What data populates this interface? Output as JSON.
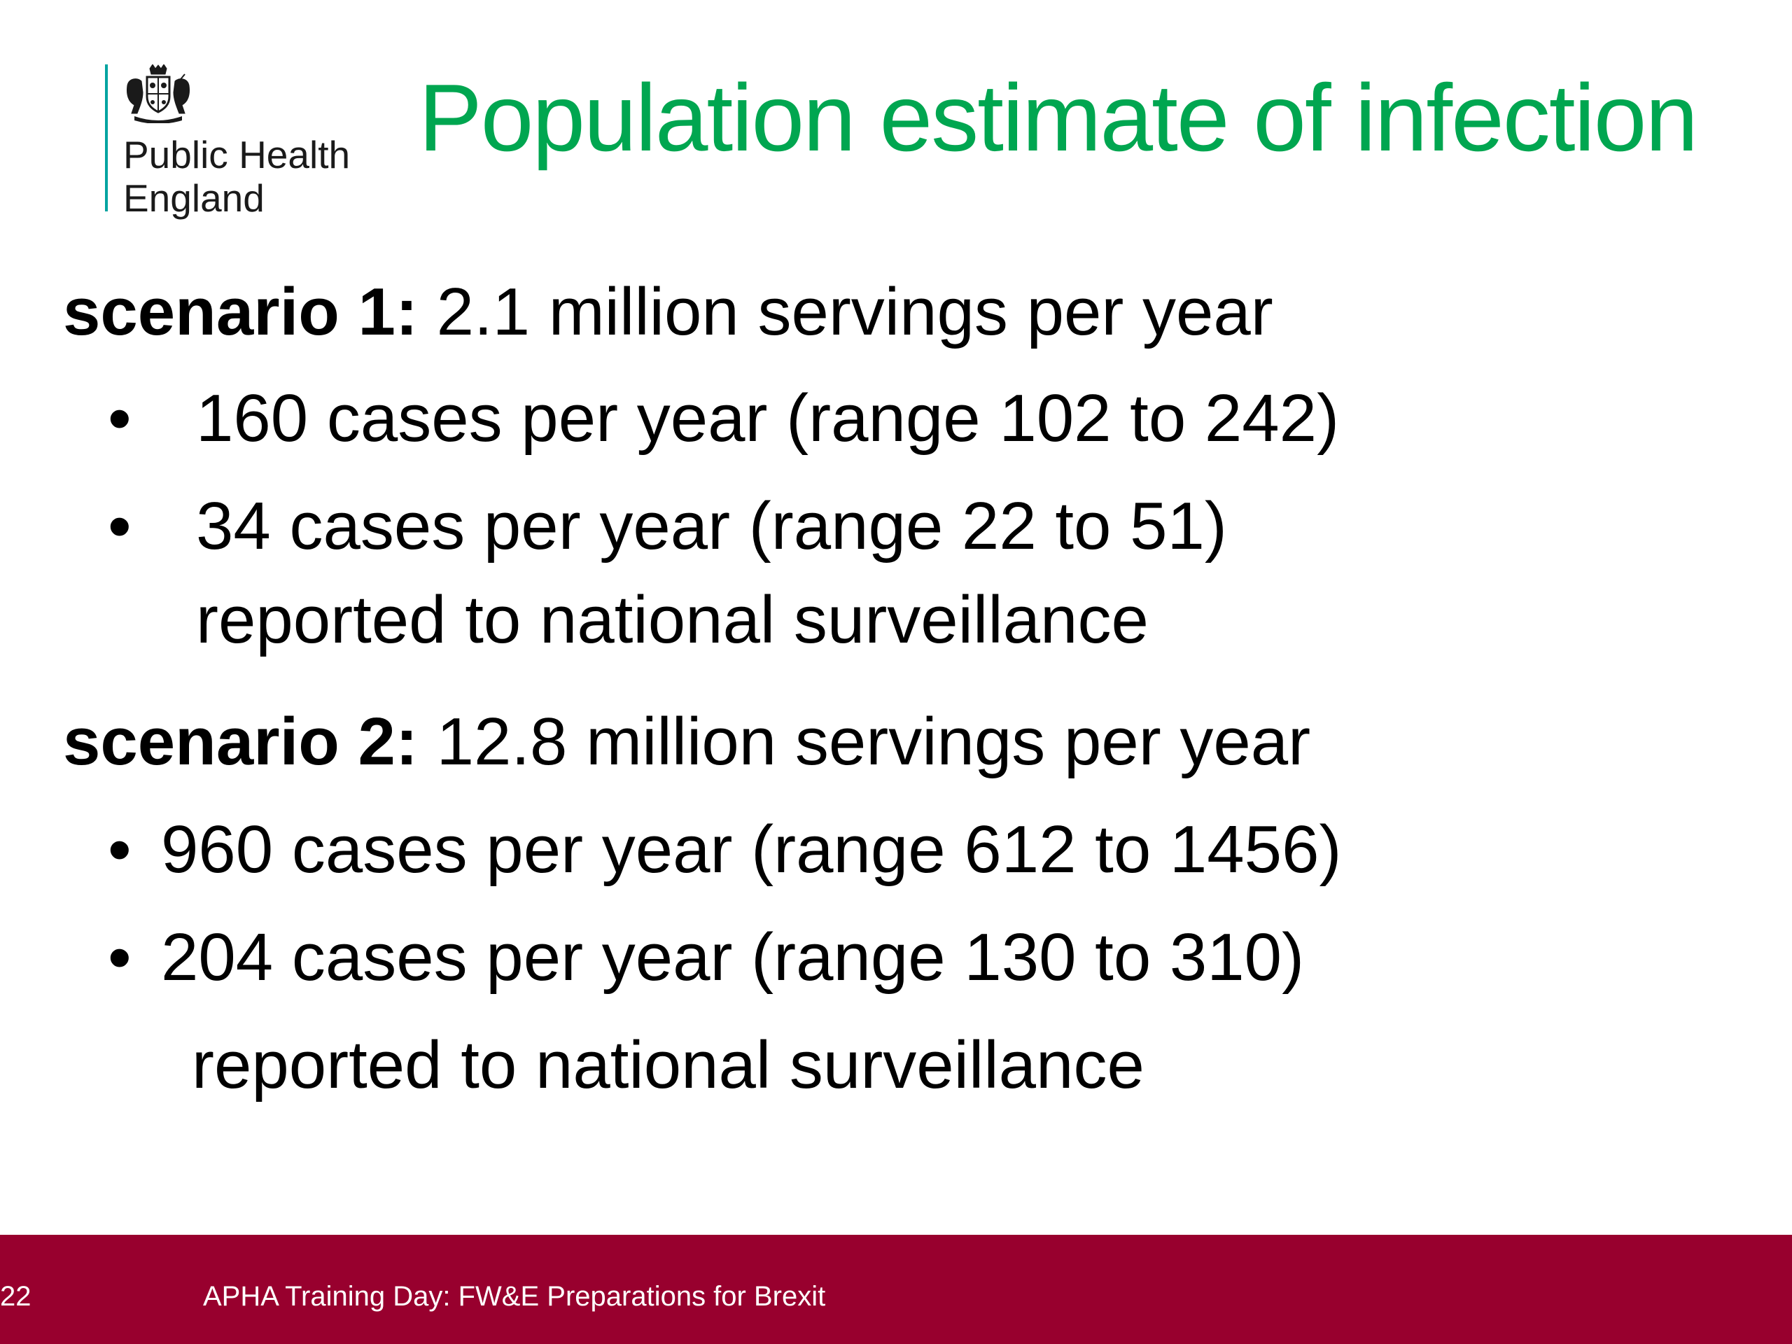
{
  "logo": {
    "org_line1": "Public Health",
    "org_line2": "England",
    "icon": "royal-crest-icon",
    "accent_color": "#00a3a0"
  },
  "title": "Population estimate of infection",
  "title_color": "#00a650",
  "scenarios": [
    {
      "label": "scenario 1:",
      "text": "2.1 million servings per year",
      "bullets": [
        {
          "text": "160 cases per year (range 102 to 242)"
        },
        {
          "text": "34 cases per year (range 22 to 51)",
          "continuation": "reported to national surveillance"
        }
      ]
    },
    {
      "label": "scenario 2:",
      "text": "12.8 million servings per year",
      "bullets": [
        {
          "text": "960 cases per year (range 612 to 1456)"
        },
        {
          "text": "204 cases per year (range 130 to 310)",
          "continuation": "reported to national surveillance"
        }
      ]
    }
  ],
  "bullet_glyph": "•",
  "footer": {
    "page_number": "22",
    "text": "APHA Training Day: FW&E Preparations for Brexit",
    "background": "#98002e"
  }
}
